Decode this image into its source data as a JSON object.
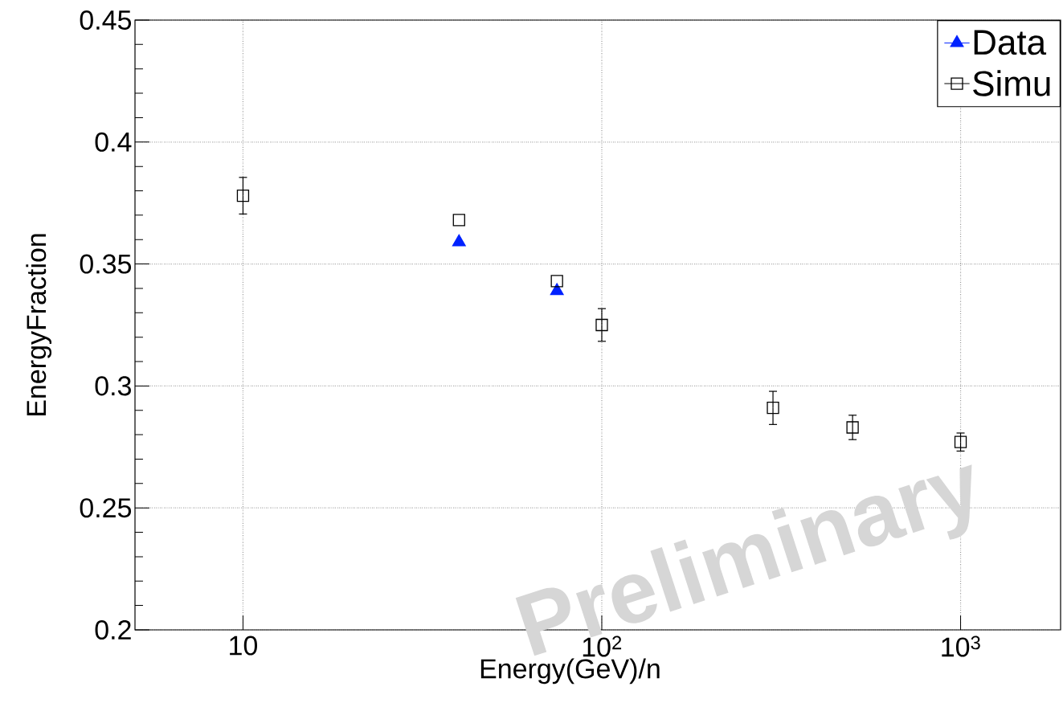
{
  "chart_data": {
    "type": "scatter",
    "xlabel": "Energy(GeV)/n",
    "ylabel": "EnergyFraction",
    "log": "x",
    "xlim": [
      5,
      1900
    ],
    "ylim": [
      0.2,
      0.45
    ],
    "xticks": [
      10,
      {
        "value": 100,
        "label": "10$^{2}$"
      },
      {
        "value": 1000,
        "label": "10$^{3}$"
      }
    ],
    "yticks": [
      0.2,
      0.25,
      0.3,
      0.35,
      0.4,
      0.45
    ],
    "grid": true,
    "legend": "top right",
    "series": [
      {
        "name": "Data",
        "color": "#0022ff",
        "marker": "triangle",
        "x": [
          40,
          75
        ],
        "values": [
          0.359,
          0.339
        ]
      },
      {
        "name": "Simu",
        "color": "#000000",
        "marker": "square",
        "x": [
          10,
          40,
          75,
          100,
          300,
          500,
          1000
        ],
        "values": [
          0.378,
          0.368,
          0.343,
          0.325,
          0.291,
          0.283,
          0.277
        ],
        "errors": [
          0.0075,
          null,
          null,
          0.0067,
          0.0068,
          0.005,
          0.0037
        ]
      }
    ],
    "annotations": [
      "Preliminary"
    ]
  }
}
